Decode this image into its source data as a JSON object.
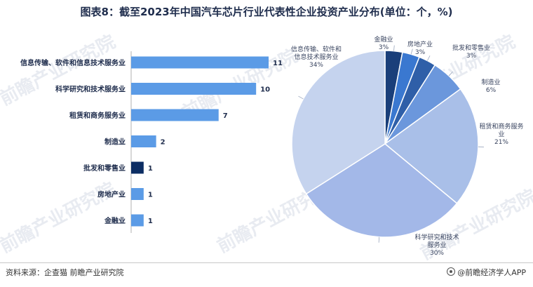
{
  "title": "图表8：截至2023年中国汽车芯片行业代表性企业投资产业分布(单位：个，%)",
  "watermark": "前瞻产业研究院",
  "source": "资料来源：企查猫 前瞻产业研究院",
  "brand": "@前瞻经济学人APP",
  "chart_data": [
    {
      "type": "bar",
      "orientation": "horizontal",
      "categories": [
        "信息传输、软件和信息技术服务业",
        "科学研究和技术服务业",
        "租赁和商务服务业",
        "制造业",
        "批发和零售业",
        "房地产业",
        "金融业"
      ],
      "values": [
        11,
        10,
        7,
        2,
        1,
        1,
        1
      ],
      "colors": [
        "#5b9be6",
        "#5b9be6",
        "#5b9be6",
        "#5b9be6",
        "#0c2d63",
        "#5b9be6",
        "#5b9be6"
      ],
      "xlim": [
        0,
        11
      ]
    },
    {
      "type": "pie",
      "labels": [
        "金融业",
        "房地产业",
        "批发和零售业",
        "制造业",
        "租赁和商务服务业",
        "科学研究和技术服务业",
        "信息传输、软件和信息技术服务业"
      ],
      "display_labels": [
        "金融业",
        "房地产业",
        "批发和零售业",
        "制造业",
        "租赁和商务服务\n业",
        "科学研究和技术\n服务业",
        "信息传输、软件和\n信息技术服务业"
      ],
      "values": [
        3,
        3,
        3,
        6,
        21,
        30,
        34
      ],
      "value_labels": [
        "3%",
        "3%",
        "3%",
        "6%",
        "21%",
        "30%",
        "34%"
      ],
      "colors": [
        "#1a3f7a",
        "#3a78d0",
        "#2f5fa8",
        "#6b97dc",
        "#a9bfe8",
        "#a3b8e8",
        "#c5d3ee"
      ]
    }
  ]
}
